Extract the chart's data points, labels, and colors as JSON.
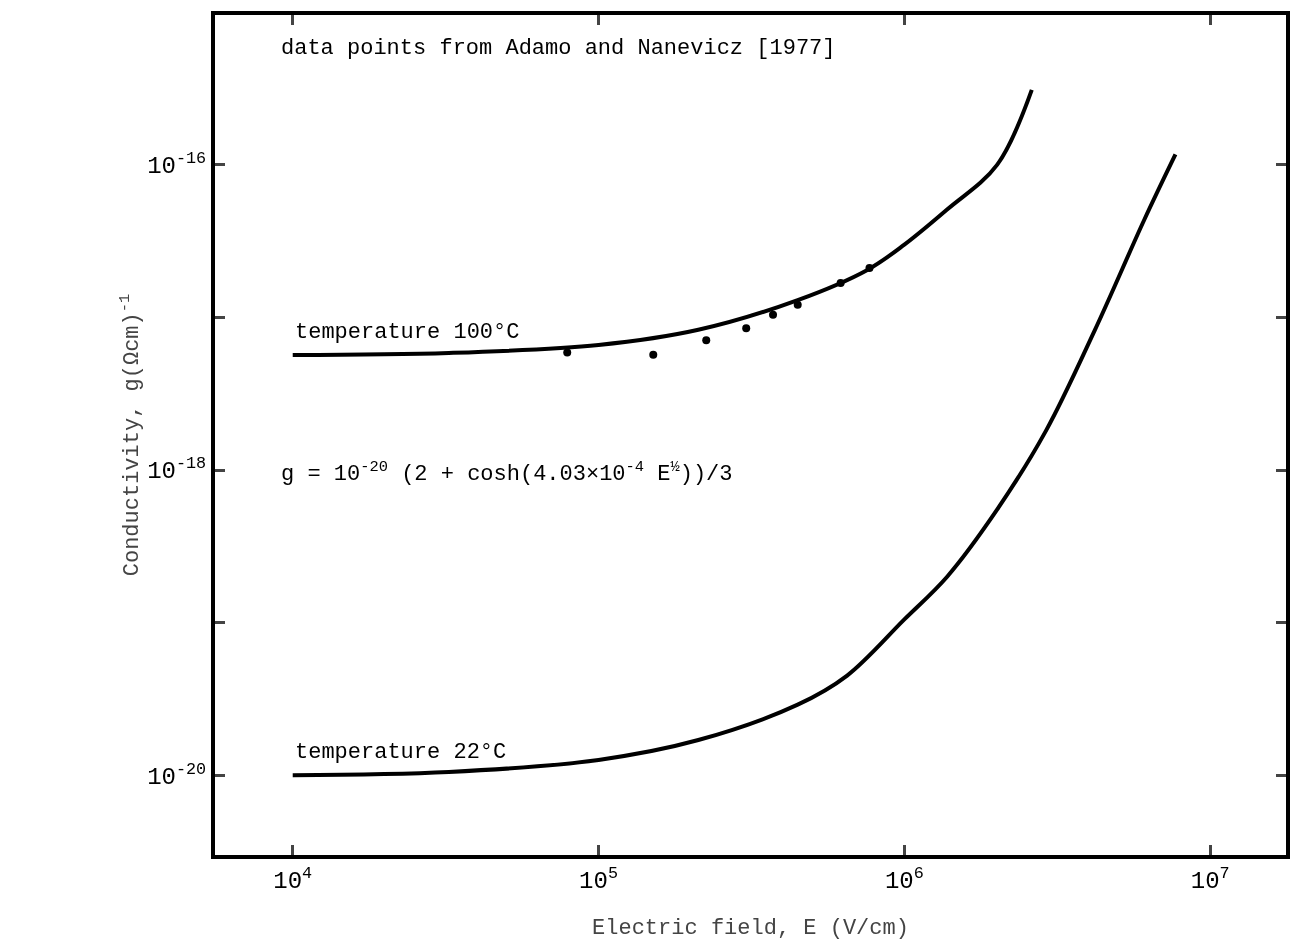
{
  "chart_data": {
    "type": "line",
    "xlabel": "Electric field, E (V/cm)",
    "ylabel": "Conductivity, g(Ωcm)$^{-1}$",
    "log": "xy",
    "grid": false,
    "legend": false,
    "marker": "none",
    "line_style": "solid",
    "xlim": [
      5570,
      17700000
    ],
    "ylim": [
      3e-21,
      9.6e-16
    ],
    "xticks": [
      {
        "value": 10000,
        "label": "10$^{4}$"
      },
      {
        "value": 100000,
        "label": "10$^{5}$"
      },
      {
        "value": 1000000,
        "label": "10$^{6}$"
      },
      {
        "value": 10000000,
        "label": "10$^{7}$"
      }
    ],
    "yticks": [
      {
        "value": 1e-20,
        "label": "10$^{-20}$"
      },
      {
        "value": 1e-19,
        "label": null
      },
      {
        "value": 1e-18,
        "label": "10$^{-18}$"
      },
      {
        "value": 1e-17,
        "label": null
      },
      {
        "value": 1e-16,
        "label": "10$^{-16}$"
      }
    ],
    "series": [
      {
        "name": "temperature 100°C",
        "color": "#000000",
        "x": [
          10000,
          32400,
          100000,
          212000,
          448000,
          757000,
          1000000,
          1380000,
          2010000,
          2610000
        ],
        "values": [
          5.67e-18,
          5.85e-18,
          6.6e-18,
          8.3e-18,
          1.3e-17,
          2.05e-17,
          3e-17,
          5.1e-17,
          1e-16,
          3.1e-16
        ]
      },
      {
        "type": "scatter",
        "marker": "circle",
        "color": "#000000",
        "x": [
          79000,
          151000,
          225000,
          304000,
          372000,
          448000,
          619000,
          769000
        ],
        "values": [
          5.9e-18,
          5.7e-18,
          7.1e-18,
          8.5e-18,
          1.04e-17,
          1.21e-17,
          1.68e-17,
          2.11e-17
        ]
      },
      {
        "name": "temperature 22°C",
        "color": "#000000",
        "x": [
          10000,
          32400,
          100000,
          212000,
          448000,
          650000,
          1000000,
          1380000,
          2010000,
          2900000,
          4200000,
          6100000,
          7700000
        ],
        "values": [
          1e-20,
          1.05e-20,
          1.26e-20,
          1.7e-20,
          2.9e-20,
          4.5e-20,
          1.05e-19,
          2e-19,
          5.5e-19,
          1.8e-18,
          8.3e-18,
          4.4e-17,
          1.17e-16
        ]
      }
    ],
    "annotations": [
      "data points from Adamo and Nanevicz [1977]",
      "g = 10$^{-20}$ (2 + cosh(4.03×10$^{-4}$ E$^{½}$))/3"
    ]
  }
}
